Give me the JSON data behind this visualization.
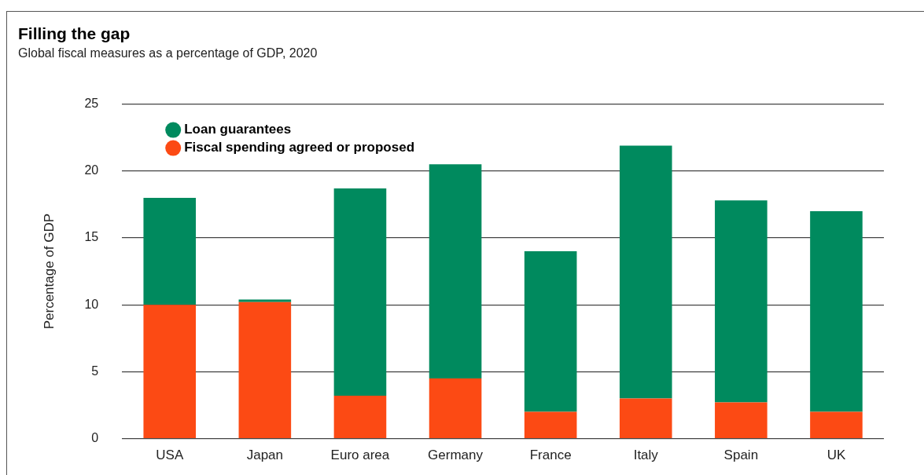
{
  "chart_data": {
    "type": "bar",
    "title": "Filling the gap",
    "subtitle": "Global fiscal measures as a percentage of GDP, 2020",
    "ylabel": "Percentage of GDP",
    "categories": [
      "USA",
      "Japan",
      "Euro area",
      "Germany",
      "France",
      "Italy",
      "Spain",
      "UK"
    ],
    "series": [
      {
        "name": "Fiscal spending agreed or proposed",
        "color": "#fc4a14",
        "values": [
          10,
          10.2,
          3.2,
          4.5,
          2,
          3,
          2.7,
          2
        ]
      },
      {
        "name": "Loan guarantees",
        "color": "#008a5e",
        "values": [
          8,
          0.2,
          15.5,
          16,
          12,
          18.9,
          15.1,
          15
        ]
      }
    ],
    "stacked": true,
    "ylim": [
      0,
      25
    ],
    "yticks": [
      0,
      5,
      10,
      15,
      20,
      25
    ],
    "grid": "y",
    "legend": "top left"
  }
}
